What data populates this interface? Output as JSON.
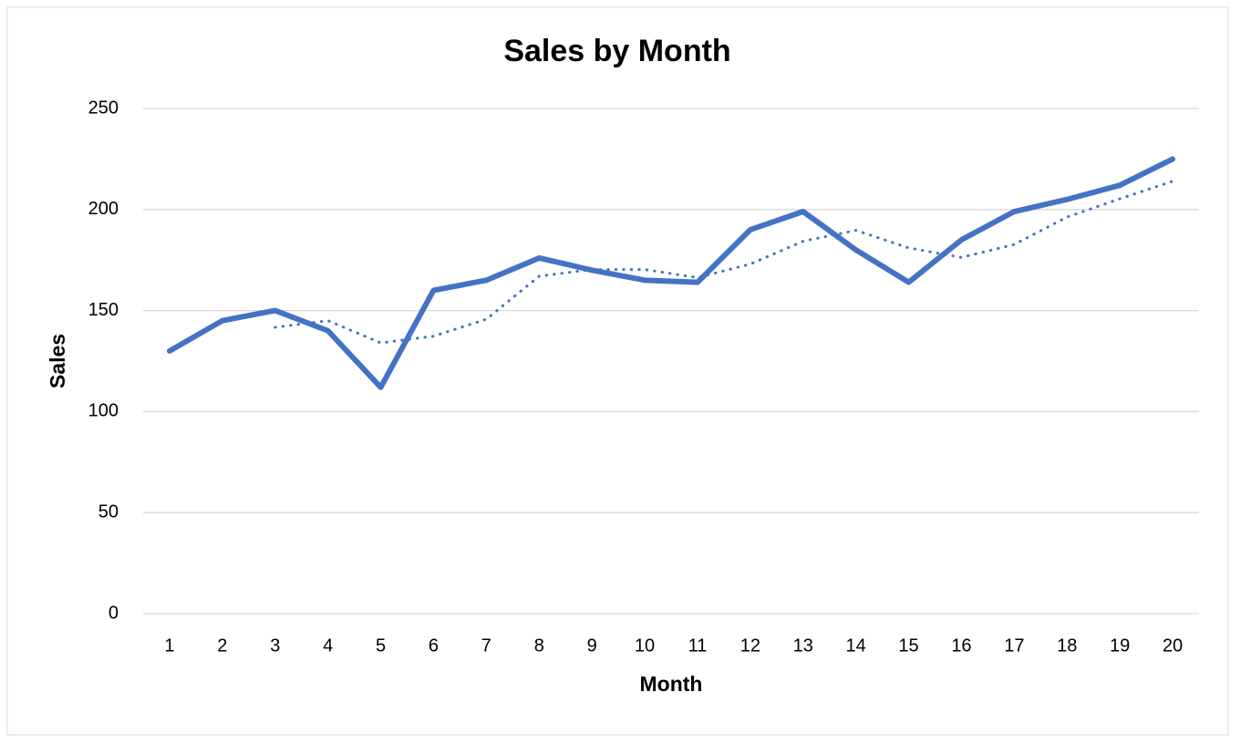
{
  "chart_data": {
    "type": "line",
    "title": "Sales by Month",
    "x_label": "Month",
    "y_label": "Sales",
    "categories": [
      1,
      2,
      3,
      4,
      5,
      6,
      7,
      8,
      9,
      10,
      11,
      12,
      13,
      14,
      15,
      16,
      17,
      18,
      19,
      20
    ],
    "series": [
      {
        "color": "#4472c4",
        "style": "solid",
        "values": [
          130,
          145,
          150,
          140,
          112,
          160,
          165,
          176,
          170,
          165,
          164,
          190,
          199,
          180,
          164,
          185,
          199,
          205,
          212,
          225
        ]
      },
      {
        "color": "#4472c4",
        "style": "dotted",
        "values": [
          null,
          null,
          141.7,
          145,
          134,
          137.3,
          145.7,
          167,
          170.3,
          170.3,
          166.3,
          173,
          184.3,
          189.7,
          181,
          176.3,
          182.7,
          196.3,
          205.3,
          214
        ]
      }
    ],
    "ylim": [
      0,
      250
    ],
    "yticks": [
      0,
      50,
      100,
      150,
      200,
      250
    ],
    "grid": true
  }
}
